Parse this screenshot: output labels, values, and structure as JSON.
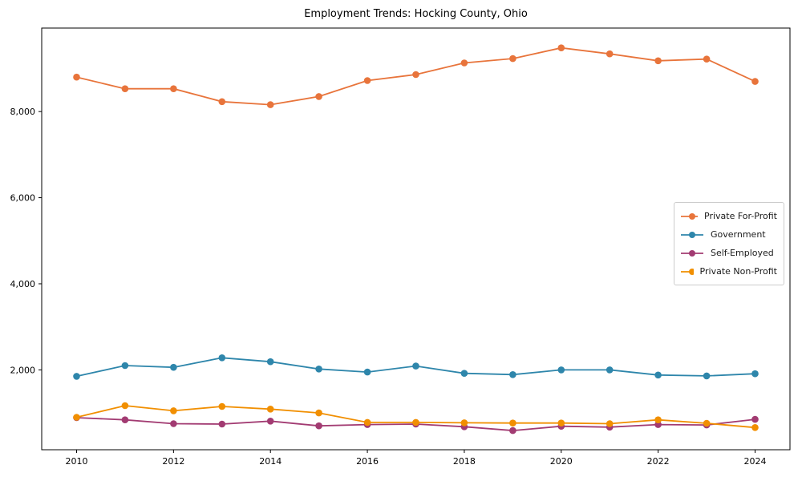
{
  "chart_data": {
    "type": "line",
    "title": "Employment Trends: Hocking County, Ohio",
    "xlabel": "",
    "ylabel": "",
    "grid": false,
    "legend_position": "center-right",
    "background_color": "#ffffff",
    "axis_color": "#000000",
    "x": [
      2010,
      2011,
      2012,
      2013,
      2014,
      2015,
      2016,
      2017,
      2018,
      2019,
      2020,
      2021,
      2022,
      2023,
      2024
    ],
    "series": [
      {
        "name": "Private For-Profit",
        "color": "#E8743B",
        "values": [
          8800,
          8530,
          8530,
          8230,
          8160,
          8350,
          8720,
          8860,
          9130,
          9230,
          9480,
          9340,
          9180,
          9220,
          8700
        ]
      },
      {
        "name": "Government",
        "color": "#2E86AB",
        "values": [
          1850,
          2100,
          2060,
          2280,
          2190,
          2020,
          1950,
          2090,
          1920,
          1890,
          2000,
          2000,
          1880,
          1860,
          1910
        ]
      },
      {
        "name": "Self-Employed",
        "color": "#A23B72",
        "values": [
          890,
          840,
          750,
          740,
          810,
          700,
          730,
          740,
          680,
          590,
          690,
          670,
          730,
          720,
          850
        ]
      },
      {
        "name": "Private Non-Profit",
        "color": "#F18F01",
        "values": [
          900,
          1170,
          1050,
          1150,
          1090,
          1000,
          780,
          780,
          770,
          765,
          765,
          750,
          840,
          760,
          660
        ]
      }
    ],
    "xticks": {
      "values": [
        2010,
        2012,
        2014,
        2016,
        2018,
        2020,
        2022,
        2024
      ],
      "labels": [
        "2010",
        "2012",
        "2014",
        "2016",
        "2018",
        "2020",
        "2022",
        "2024"
      ]
    },
    "yticks": {
      "values": [
        2000,
        4000,
        6000,
        8000
      ],
      "labels": [
        "2,000",
        "4,000",
        "6,000",
        "8,000"
      ]
    },
    "xlim": [
      2009.28,
      2024.72
    ],
    "ylim": [
      145,
      9940
    ]
  }
}
